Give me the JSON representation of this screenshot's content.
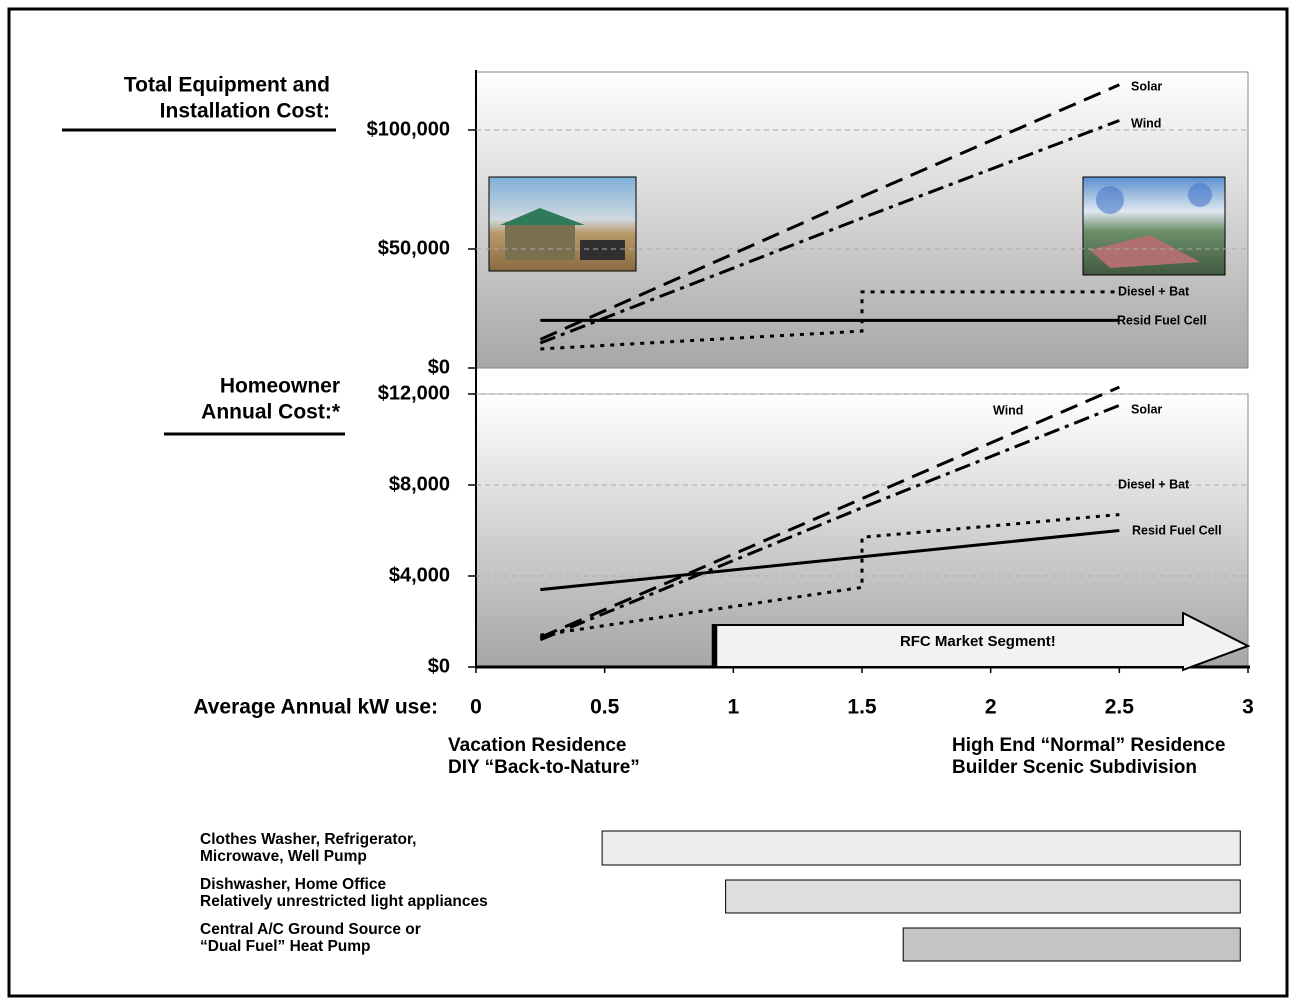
{
  "chart_data": [
    {
      "type": "line",
      "ylabel": [
        "Total Equipment and",
        "Installation Cost:"
      ],
      "ylim": [
        0,
        125000
      ],
      "yticks": [
        {
          "value": 0,
          "label": "$0"
        },
        {
          "value": 50000,
          "label": "$50,000"
        },
        {
          "value": 100000,
          "label": "$100,000"
        }
      ],
      "grid": true,
      "xlim": [
        0,
        3
      ],
      "series": [
        {
          "name": "Solar",
          "color": "#000000",
          "style": "dashed",
          "x": [
            0.25,
            1.5,
            2.5
          ],
          "values": [
            12000,
            72000,
            119000
          ]
        },
        {
          "name": "Wind",
          "color": "#000000",
          "style": "dashdot",
          "x": [
            0.25,
            1.5,
            2.5
          ],
          "values": [
            10500,
            63000,
            104000
          ]
        },
        {
          "name": "Diesel + Bat",
          "color": "#000000",
          "style": "dotted",
          "x": [
            0.25,
            1.5,
            1.5,
            2.5
          ],
          "values": [
            8000,
            15500,
            32000,
            32000
          ]
        },
        {
          "name": "Resid Fuel Cell",
          "color": "#000000",
          "style": "solid",
          "x": [
            0.25,
            2.5
          ],
          "values": [
            20000,
            20000
          ]
        }
      ]
    },
    {
      "type": "line",
      "ylabel": [
        "Homeowner",
        "Annual Cost:*"
      ],
      "ylim": [
        0,
        12000
      ],
      "yticks": [
        {
          "value": 0,
          "label": "$0"
        },
        {
          "value": 4000,
          "label": "$4,000"
        },
        {
          "value": 8000,
          "label": "$8,000"
        },
        {
          "value": 12000,
          "label": "$12,000"
        }
      ],
      "grid": true,
      "xlim": [
        0,
        3
      ],
      "xticks": [
        0,
        0.5,
        1,
        1.5,
        2,
        2.5,
        3
      ],
      "xlabel": "Average Annual kW use:",
      "x_notes": [
        [
          "Vacation Residence",
          "DIY “Back-to-Nature”"
        ],
        [
          "High End “Normal” Residence",
          "Builder Scenic Subdivision"
        ]
      ],
      "annotation": {
        "text": "RFC Market Segment!",
        "x": [
          0.92,
          3
        ]
      },
      "series": [
        {
          "name": "Solar",
          "color": "#000000",
          "style": "dashed",
          "x": [
            0.25,
            1.5,
            2.5
          ],
          "values": [
            1300,
            7400,
            12300
          ]
        },
        {
          "name": "Wind",
          "color": "#000000",
          "style": "dashdot",
          "x": [
            0.25,
            1.5,
            2.5
          ],
          "values": [
            1200,
            7000,
            11500
          ]
        },
        {
          "name": "Diesel + Bat",
          "color": "#000000",
          "style": "dotted",
          "x": [
            0.25,
            1.5,
            1.5,
            2.5
          ],
          "values": [
            1400,
            3500,
            5700,
            6700
          ]
        },
        {
          "name": "Resid Fuel Cell",
          "color": "#000000",
          "style": "solid",
          "x": [
            0.25,
            2.5
          ],
          "values": [
            3400,
            6000
          ]
        }
      ]
    },
    {
      "type": "range",
      "xlim": [
        0,
        3
      ],
      "categories": [
        [
          "Clothes Washer, Refrigerator,",
          "Microwave, Well Pump"
        ],
        [
          "Dishwasher, Home Office",
          "Relatively unrestricted light appliances"
        ],
        [
          "Central A/C  Ground Source or",
          "“Dual Fuel” Heat Pump"
        ]
      ],
      "start": [
        0.49,
        0.97,
        1.66
      ],
      "end": [
        2.97,
        2.97,
        2.97
      ],
      "colors": [
        "#ececec",
        "#dedede",
        "#c4c4c4"
      ]
    }
  ]
}
